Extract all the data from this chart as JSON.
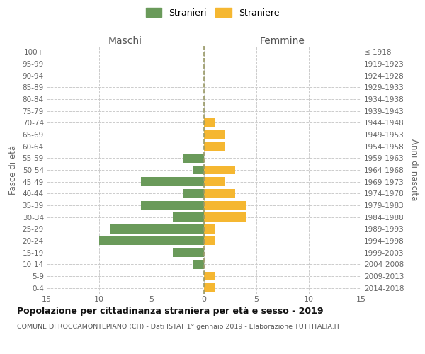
{
  "age_groups": [
    "100+",
    "95-99",
    "90-94",
    "85-89",
    "80-84",
    "75-79",
    "70-74",
    "65-69",
    "60-64",
    "55-59",
    "50-54",
    "45-49",
    "40-44",
    "35-39",
    "30-34",
    "25-29",
    "20-24",
    "15-19",
    "10-14",
    "5-9",
    "0-4"
  ],
  "birth_years": [
    "≤ 1918",
    "1919-1923",
    "1924-1928",
    "1929-1933",
    "1934-1938",
    "1939-1943",
    "1944-1948",
    "1949-1953",
    "1954-1958",
    "1959-1963",
    "1964-1968",
    "1969-1973",
    "1974-1978",
    "1979-1983",
    "1984-1988",
    "1989-1993",
    "1994-1998",
    "1999-2003",
    "2004-2008",
    "2009-2013",
    "2014-2018"
  ],
  "males": [
    0,
    0,
    0,
    0,
    0,
    0,
    0,
    0,
    0,
    2,
    1,
    6,
    2,
    6,
    3,
    9,
    10,
    3,
    1,
    0,
    0
  ],
  "females": [
    0,
    0,
    0,
    0,
    0,
    0,
    1,
    2,
    2,
    0,
    3,
    2,
    3,
    4,
    4,
    1,
    1,
    0,
    0,
    1,
    1
  ],
  "male_color": "#6a9a5a",
  "female_color": "#f5b731",
  "grid_color": "#cccccc",
  "centerline_color": "#999966",
  "title": "Popolazione per cittadinanza straniera per età e sesso - 2019",
  "subtitle": "COMUNE DI ROCCAMONTEPIANO (CH) - Dati ISTAT 1° gennaio 2019 - Elaborazione TUTTITALIA.IT",
  "xlabel_left": "Maschi",
  "xlabel_right": "Femmine",
  "ylabel_left": "Fasce di età",
  "ylabel_right": "Anni di nascita",
  "legend_male": "Stranieri",
  "legend_female": "Straniere",
  "xlim": 15,
  "bar_height": 0.75
}
